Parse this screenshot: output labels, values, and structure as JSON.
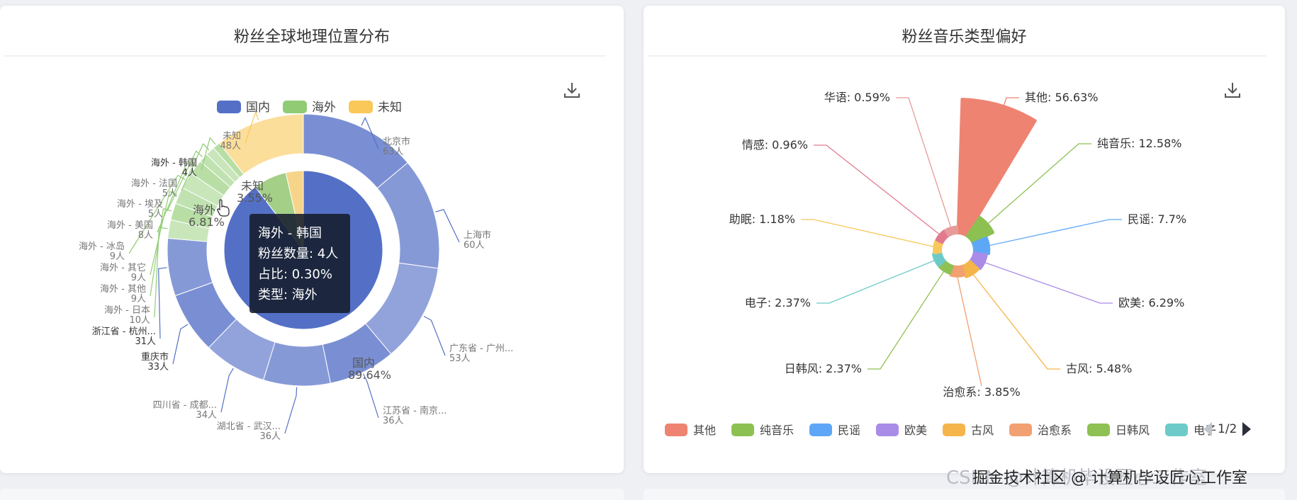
{
  "chart_data": [
    {
      "type": "pie",
      "title": "粉丝全球地理位置分布",
      "legend": [
        "国内",
        "海外",
        "未知"
      ],
      "legend_placement": "top-center",
      "inner_ring": [
        {
          "name": "国内",
          "percent_label": "89.64%",
          "value": 89.64
        },
        {
          "name": "海外",
          "percent_label": "6.81%",
          "value": 6.81
        },
        {
          "name": "未知",
          "percent_label": "3.55%",
          "value": 3.55
        }
      ],
      "outer_ring": [
        {
          "name": "北京市",
          "count_label": "63人",
          "value": 63,
          "group": "国内"
        },
        {
          "name": "上海市",
          "count_label": "60人",
          "value": 60,
          "group": "国内"
        },
        {
          "name": "广东省 - 广州...",
          "count_label": "53人",
          "value": 53,
          "group": "国内"
        },
        {
          "name": "江苏省 - 南京...",
          "count_label": "36人",
          "value": 36,
          "group": "国内"
        },
        {
          "name": "湖北省 - 武汉...",
          "count_label": "36人",
          "value": 36,
          "group": "国内"
        },
        {
          "name": "四川省 - 成都...",
          "count_label": "34人",
          "value": 34,
          "group": "国内"
        },
        {
          "name": "重庆市",
          "count_label": "33人",
          "value": 33,
          "group": "国内"
        },
        {
          "name": "浙江省 - 杭州...",
          "count_label": "31人",
          "value": 31,
          "group": "国内"
        },
        {
          "name": "海外 - 日本",
          "count_label": "10人",
          "value": 10,
          "group": "海外"
        },
        {
          "name": "海外 - 其他",
          "count_label": "9人",
          "value": 9,
          "group": "海外"
        },
        {
          "name": "海外 - 其它",
          "count_label": "9人",
          "value": 9,
          "group": "海外"
        },
        {
          "name": "海外 - 冰岛",
          "count_label": "9人",
          "value": 9,
          "group": "海外"
        },
        {
          "name": "海外 - 美国",
          "count_label": "8人",
          "value": 8,
          "group": "海外"
        },
        {
          "name": "海外 - 埃及",
          "count_label": "5人",
          "value": 5,
          "group": "海外"
        },
        {
          "name": "海外 - 法国",
          "count_label": "5人",
          "value": 5,
          "group": "海外"
        },
        {
          "name": "海外 - 韩国",
          "count_label": "4人",
          "value": 4,
          "group": "海外"
        },
        {
          "name": "未知",
          "count_label": "48人",
          "value": 48,
          "group": "未知"
        }
      ],
      "tooltip": {
        "title": "海外 - 韩国",
        "count": "粉丝数量: 4人",
        "ratio": "占比: 0.30%",
        "kind": "类型: 海外"
      },
      "colors": {
        "国内": "#5470c6",
        "海外": "#91cc75",
        "未知": "#fac858"
      }
    },
    {
      "type": "pie",
      "subtype": "rose",
      "title": "粉丝音乐类型偏好",
      "slices": [
        {
          "name": "其他",
          "value": 56.63,
          "label": "其他: 56.63%",
          "color": "#ee8372"
        },
        {
          "name": "纯音乐",
          "value": 12.58,
          "label": "纯音乐: 12.58%",
          "color": "#8cc152"
        },
        {
          "name": "民谣",
          "value": 7.7,
          "label": "民谣: 7.7%",
          "color": "#5ea7f6"
        },
        {
          "name": "欧美",
          "value": 6.29,
          "label": "欧美: 6.29%",
          "color": "#a98be8"
        },
        {
          "name": "古风",
          "value": 5.48,
          "label": "古风: 5.48%",
          "color": "#f5b54a"
        },
        {
          "name": "治愈系",
          "value": 3.85,
          "label": "治愈系: 3.85%",
          "color": "#f2a071"
        },
        {
          "name": "日韩风",
          "value": 2.37,
          "label": "日韩风: 2.37%",
          "color": "#8ec053"
        },
        {
          "name": "电子",
          "value": 2.37,
          "label": "电子: 2.37%",
          "color": "#6ccbc8"
        },
        {
          "name": "助眠",
          "value": 1.18,
          "label": "助眠: 1.18%",
          "color": "#f7c85c"
        },
        {
          "name": "情感",
          "value": 0.96,
          "label": "情感: 0.96%",
          "color": "#e27a8e"
        },
        {
          "name": "华语",
          "value": 0.59,
          "label": "华语: 0.59%",
          "color": "#e79a9a"
        }
      ],
      "legend": [
        "其他",
        "纯音乐",
        "民谣",
        "欧美",
        "古风",
        "治愈系",
        "日韩风",
        "电子"
      ],
      "legend_placement": "bottom",
      "pager": "1/2"
    }
  ],
  "icons": {
    "download": "download-icon",
    "prev": "prev-page-icon",
    "next": "next-page-icon"
  },
  "watermark": {
    "back": "CSDN @计算机毕设匠心工作室",
    "front": "掘金技术社区 @ 计算机毕设匠心工作室"
  }
}
